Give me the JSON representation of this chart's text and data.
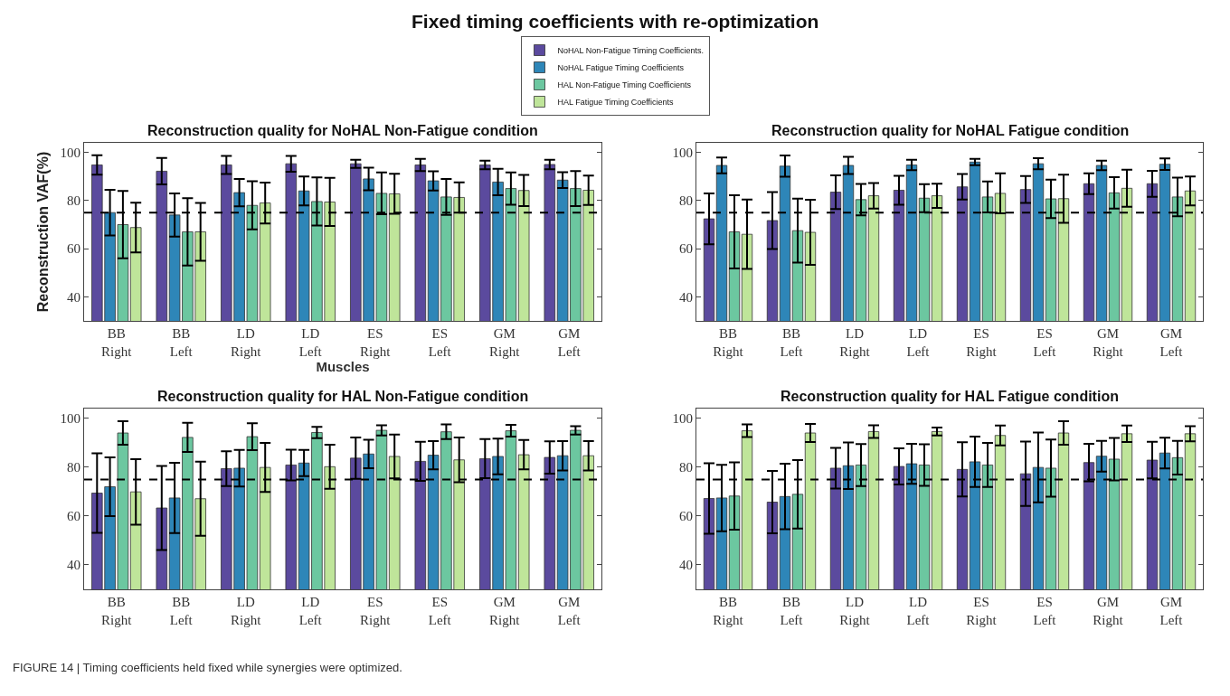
{
  "chart_data": [
    {
      "type": "bar",
      "title": "Reconstruction quality for NoHAL Non-Fatigue condition",
      "xlabel": "Muscles",
      "ylabel": "Reconstruction VAF(%)",
      "annotations": [
        "Fixed timing coefficients with re-optimization",
        "FIGURE 14 | Timing coefficients held fixed while synergies were optimized."
      ],
      "categories": [
        "BB\nRight",
        "BB\nLeft",
        "LD\nRight",
        "LD\nLeft",
        "ES\nRight",
        "ES\nLeft",
        "GM\nRight",
        "GM\nLeft"
      ],
      "series": [
        {
          "name": "NoHAL Non-Fatigue Timing Coefficients.",
          "color": "#5b4a9e",
          "values": [
            94.8,
            92.2,
            94.8,
            95.3,
            95.3,
            94.8,
            94.8,
            95
          ],
          "errors": [
            4,
            5.5,
            3.8,
            3.3,
            1.7,
            2.5,
            1.8,
            2
          ]
        },
        {
          "name": "NoHAL Fatigue Timing Coefficients",
          "color": "#2e86b8",
          "values": [
            75,
            74,
            83.3,
            84,
            89,
            88.2,
            87.7,
            88.5
          ],
          "errors": [
            9.5,
            9,
            5.7,
            6,
            4.7,
            4,
            5.5,
            3.3
          ]
        },
        {
          "name": "HAL Non-Fatigue Timing Coefficients",
          "color": "#6cc7a0",
          "values": [
            70,
            67,
            78,
            79.6,
            83,
            81.5,
            85,
            85
          ],
          "errors": [
            14,
            14,
            10,
            10,
            8.7,
            7.5,
            6.7,
            7.3
          ]
        },
        {
          "name": "HAL Fatigue Timing Coefficients",
          "color": "#bfe59a",
          "values": [
            68.8,
            67,
            79,
            79.4,
            82.8,
            81.3,
            84.2,
            84.3
          ],
          "errors": [
            10.3,
            12,
            8.5,
            10,
            8.3,
            6.3,
            6.5,
            6.1
          ]
        }
      ],
      "ylim": [
        30,
        104
      ],
      "yticks": [
        40,
        60,
        80,
        100
      ],
      "ref_lines": [
        {
          "axis": "y",
          "value": 75,
          "line_style": "dashed",
          "color": "#000000"
        }
      ],
      "legend": "top"
    },
    {
      "type": "bar",
      "title": "Reconstruction quality for NoHAL Fatigue condition",
      "categories": [
        "BB\nRight",
        "BB\nLeft",
        "LD\nRight",
        "LD\nLeft",
        "ES\nRight",
        "ES\nLeft",
        "GM\nRight",
        "GM\nLeft"
      ],
      "series": [
        {
          "color": "#5b4a9e",
          "values": [
            72.4,
            71.7,
            83.5,
            84.3,
            85.7,
            84.6,
            87,
            87
          ],
          "errors": [
            10.6,
            11.8,
            7,
            6,
            5.3,
            5.6,
            4.3,
            5.4
          ]
        },
        {
          "color": "#2e86b8",
          "values": [
            94.6,
            94.3,
            94.6,
            94.8,
            96,
            95.3,
            94.6,
            95.1
          ],
          "errors": [
            3.3,
            4.4,
            3.6,
            2.2,
            1.3,
            2.3,
            2,
            2.4
          ]
        },
        {
          "color": "#6cc7a0",
          "values": [
            67,
            67.5,
            80.4,
            81,
            81.5,
            80.7,
            83.2,
            81.5
          ],
          "errors": [
            15.2,
            13.3,
            6.5,
            5.8,
            6.4,
            8,
            6.5,
            8
          ]
        },
        {
          "color": "#bfe59a",
          "values": [
            66,
            66.8,
            82,
            82,
            83,
            80.8,
            85.1,
            84
          ],
          "errors": [
            14.4,
            13.5,
            5.3,
            5,
            8.3,
            10,
            7.7,
            6
          ]
        }
      ],
      "ylim": [
        30,
        104
      ],
      "yticks": [
        40,
        60,
        80,
        100
      ],
      "ref_lines": [
        {
          "axis": "y",
          "value": 75,
          "line_style": "dashed",
          "color": "#000000"
        }
      ]
    },
    {
      "type": "bar",
      "title": "Reconstruction quality for HAL Non-Fatigue condition",
      "categories": [
        "BB\nRight",
        "BB\nLeft",
        "LD\nRight",
        "LD\nLeft",
        "ES\nRight",
        "ES\nLeft",
        "GM\nRight",
        "GM\nLeft"
      ],
      "series": [
        {
          "color": "#5b4a9e",
          "values": [
            69.4,
            63.3,
            79.4,
            80.9,
            83.7,
            82.4,
            83.5,
            84
          ],
          "errors": [
            16.3,
            17.2,
            7.1,
            6.3,
            8.5,
            8,
            8,
            6.6
          ]
        },
        {
          "color": "#2e86b8",
          "values": [
            72,
            67.4,
            79.6,
            81.7,
            85.4,
            84.9,
            84.4,
            84.7
          ],
          "errors": [
            12,
            14.4,
            7.5,
            5.4,
            5.8,
            5.8,
            7.3,
            6
          ]
        },
        {
          "color": "#6cc7a0",
          "values": [
            94,
            92.2,
            92.5,
            94.2,
            95.1,
            94.5,
            94.9,
            95.1
          ],
          "errors": [
            4.8,
            6,
            5.5,
            2.3,
            2.1,
            3,
            2.4,
            1.7
          ]
        },
        {
          "color": "#bfe59a",
          "values": [
            69.9,
            67.1,
            79.9,
            80.2,
            84.4,
            83,
            85.1,
            84.7
          ],
          "errors": [
            13.4,
            15.2,
            10,
            9,
            9,
            9.2,
            6,
            6
          ]
        }
      ],
      "ylim": [
        30,
        104
      ],
      "yticks": [
        40,
        60,
        80,
        100
      ],
      "ref_lines": [
        {
          "axis": "y",
          "value": 75,
          "line_style": "dashed",
          "color": "#000000"
        }
      ]
    },
    {
      "type": "bar",
      "title": "Reconstruction quality for HAL Fatigue condition",
      "categories": [
        "BB\nRight",
        "BB\nLeft",
        "LD\nRight",
        "LD\nLeft",
        "ES\nRight",
        "ES\nLeft",
        "GM\nRight",
        "GM\nLeft"
      ],
      "series": [
        {
          "color": "#5b4a9e",
          "values": [
            67.2,
            65.7,
            79.6,
            80.3,
            79.1,
            77.3,
            81.9,
            82.9
          ],
          "errors": [
            14.4,
            12.8,
            8.3,
            7.4,
            11.1,
            13.2,
            7.7,
            7.5
          ]
        },
        {
          "color": "#2e86b8",
          "values": [
            67.4,
            68,
            80.6,
            81.4,
            82.2,
            79.9,
            84.5,
            85.8
          ],
          "errors": [
            13.6,
            13.4,
            9.5,
            8.2,
            10.3,
            14.3,
            6.3,
            6.3
          ]
        },
        {
          "color": "#6cc7a0",
          "values": [
            68.2,
            68.9,
            80.9,
            80.9,
            80.9,
            79.6,
            83.3,
            83.9
          ],
          "errors": [
            13.8,
            14,
            8.6,
            8.5,
            9,
            11.7,
            8.7,
            6.9
          ]
        },
        {
          "color": "#bfe59a",
          "values": [
            94.9,
            94,
            94.6,
            94.6,
            93,
            94,
            93.7,
            93.7
          ],
          "errors": [
            2.6,
            3.7,
            2.6,
            1.6,
            4.1,
            4.8,
            3.4,
            3.1
          ]
        }
      ],
      "ylim": [
        30,
        104
      ],
      "yticks": [
        40,
        60,
        80,
        100
      ],
      "ref_lines": [
        {
          "axis": "y",
          "value": 75,
          "line_style": "dashed",
          "color": "#000000"
        }
      ]
    }
  ]
}
